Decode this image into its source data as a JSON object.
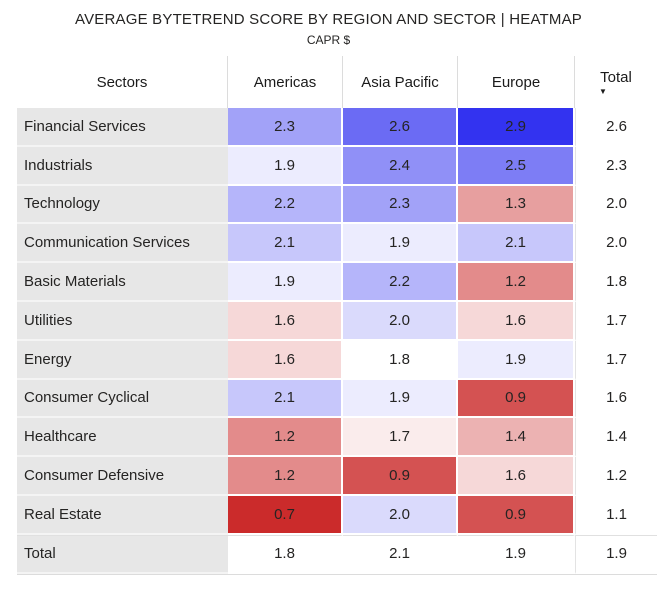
{
  "chart_data": {
    "type": "heatmap",
    "title": "AVERAGE BYTETREND SCORE BY REGION AND SECTOR | HEATMAP",
    "subtitle": "CAPR $",
    "row_header": "Sectors",
    "columns": [
      "Americas",
      "Asia Pacific",
      "Europe",
      "Total"
    ],
    "rows": [
      {
        "sector": "Financial Services",
        "values": [
          2.3,
          2.6,
          2.9
        ],
        "total": 2.6
      },
      {
        "sector": "Industrials",
        "values": [
          1.9,
          2.4,
          2.5
        ],
        "total": 2.3
      },
      {
        "sector": "Technology",
        "values": [
          2.2,
          2.3,
          1.3
        ],
        "total": 2.0
      },
      {
        "sector": "Communication Services",
        "values": [
          2.1,
          1.9,
          2.1
        ],
        "total": 2.0
      },
      {
        "sector": "Basic Materials",
        "values": [
          1.9,
          2.2,
          1.2
        ],
        "total": 1.8
      },
      {
        "sector": "Utilities",
        "values": [
          1.6,
          2.0,
          1.6
        ],
        "total": 1.7
      },
      {
        "sector": "Energy",
        "values": [
          1.6,
          1.8,
          1.9
        ],
        "total": 1.7
      },
      {
        "sector": "Consumer Cyclical",
        "values": [
          2.1,
          1.9,
          0.9
        ],
        "total": 1.6
      },
      {
        "sector": "Healthcare",
        "values": [
          1.2,
          1.7,
          1.4
        ],
        "total": 1.4
      },
      {
        "sector": "Consumer Defensive",
        "values": [
          1.2,
          0.9,
          1.6
        ],
        "total": 1.2
      },
      {
        "sector": "Real Estate",
        "values": [
          0.7,
          2.0,
          0.9
        ],
        "total": 1.1
      },
      {
        "sector": "Total",
        "values": [
          1.8,
          2.1,
          1.9
        ],
        "total": 1.9,
        "is_total": true
      }
    ],
    "sort": {
      "column": "Total",
      "direction": "descending"
    },
    "color_scale": {
      "min": 0.7,
      "mid": 1.8,
      "max": 2.9,
      "min_color_rgb": [
        203,
        43,
        43
      ],
      "mid_color_rgb": [
        255,
        255,
        255
      ],
      "max_color_rgb": [
        51,
        51,
        240
      ]
    },
    "layout": {
      "label_bg": "#e7e7e7",
      "gridline": "#dcdcdc",
      "text_color": "#252423"
    }
  },
  "icons": {
    "sort_descending": "▼"
  }
}
